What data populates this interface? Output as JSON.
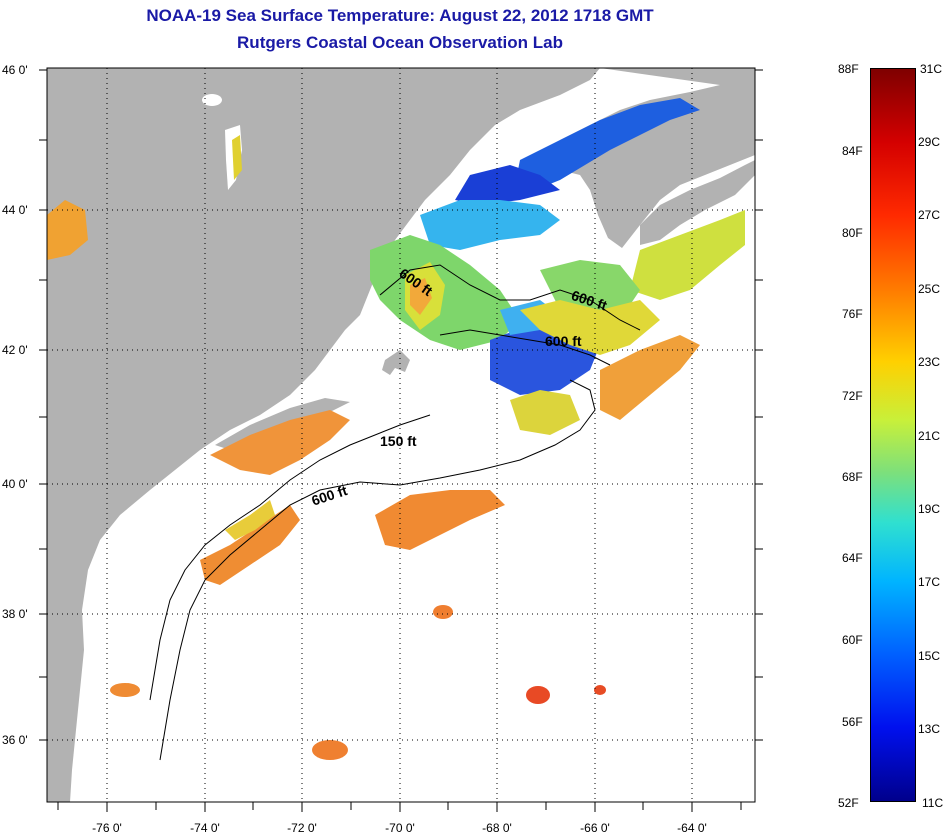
{
  "title": {
    "line1": "NOAA-19 Sea Surface Temperature:  August 22, 2012 1718 GMT",
    "line2": "Rutgers Coastal Ocean Observation Lab"
  },
  "map": {
    "longitude_labels": [
      "-76 0'",
      "-74 0'",
      "-72 0'",
      "-70 0'",
      "-68 0'",
      "-66 0'",
      "-64 0'"
    ],
    "latitude_labels": [
      "46 0'",
      "44 0'",
      "42 0'",
      "40 0'",
      "38 0'",
      "36 0'"
    ],
    "bathymetry_labels": [
      "600 ft",
      "600 ft",
      "600 ft",
      "150 ft",
      "600 ft"
    ],
    "colors": {
      "land": "#b2b2b2",
      "ocean_no_data": "#ffffff"
    }
  },
  "colorbar": {
    "fahrenheit_labels": [
      "88F",
      "84F",
      "80F",
      "76F",
      "72F",
      "68F",
      "64F",
      "60F",
      "56F",
      "52F"
    ],
    "celsius_labels": [
      "31C",
      "29C",
      "27C",
      "25C",
      "23C",
      "21C",
      "19C",
      "17C",
      "15C",
      "13C",
      "11C"
    ]
  }
}
